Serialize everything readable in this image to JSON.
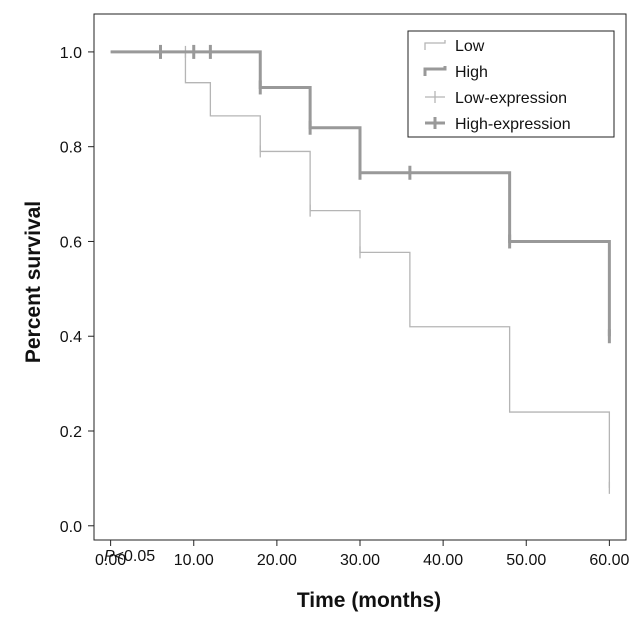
{
  "chart_data": {
    "type": "line",
    "title": "",
    "xlabel": "Time (months)",
    "ylabel": "Percent survival",
    "xlim": [
      -2,
      62
    ],
    "ylim": [
      -0.03,
      1.08
    ],
    "x_ticks": [
      "0.00",
      "10.00",
      "20.00",
      "30.00",
      "40.00",
      "50.00",
      "60.00"
    ],
    "x_tick_values": [
      0,
      10,
      20,
      30,
      40,
      50,
      60
    ],
    "y_ticks": [
      "0.0",
      "0.2",
      "0.4",
      "0.6",
      "0.8",
      "1.0"
    ],
    "y_tick_values": [
      0,
      0.2,
      0.4,
      0.6,
      0.8,
      1.0
    ],
    "annotation": {
      "italic": "P",
      "rest": "<0.05"
    },
    "grid": false,
    "legend_position": "top-right",
    "series": [
      {
        "name": "Low",
        "color": "#b5b5b5",
        "steps": [
          [
            0,
            1.0
          ],
          [
            9,
            0.935
          ],
          [
            12,
            0.865
          ],
          [
            18,
            0.79
          ],
          [
            24,
            0.665
          ],
          [
            30,
            0.577
          ],
          [
            36,
            0.42
          ],
          [
            48,
            0.24
          ],
          [
            60,
            0.08
          ]
        ],
        "censored": [
          [
            6,
            1.0
          ],
          [
            9,
            1.0
          ],
          [
            12,
            1.0
          ],
          [
            18,
            0.79
          ],
          [
            24,
            0.665
          ],
          [
            30,
            0.577
          ],
          [
            60,
            0.08
          ]
        ]
      },
      {
        "name": "High",
        "color": "#999999",
        "steps": [
          [
            0,
            1.0
          ],
          [
            18,
            0.925
          ],
          [
            24,
            0.84
          ],
          [
            30,
            0.745
          ],
          [
            48,
            0.6
          ],
          [
            60,
            0.4
          ]
        ],
        "censored": [
          [
            6,
            1.0
          ],
          [
            10,
            1.0
          ],
          [
            12,
            1.0
          ],
          [
            18,
            0.925
          ],
          [
            24,
            0.84
          ],
          [
            30,
            0.745
          ],
          [
            36,
            0.745
          ],
          [
            48,
            0.6
          ],
          [
            60,
            0.4
          ]
        ]
      }
    ],
    "legend": [
      {
        "label": "Low",
        "kind": "line",
        "series": 0
      },
      {
        "label": "High",
        "kind": "line",
        "series": 1
      },
      {
        "label": "Low-expression",
        "kind": "censor",
        "series": 0
      },
      {
        "label": "High-expression",
        "kind": "censor",
        "series": 1
      }
    ]
  }
}
